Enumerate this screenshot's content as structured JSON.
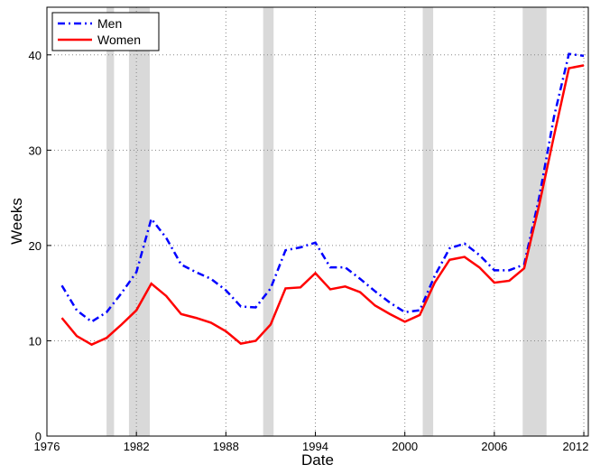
{
  "chart_data": {
    "type": "line",
    "x_label": "Date",
    "y_label": "Weeks",
    "x": [
      1977,
      1978,
      1979,
      1980,
      1981,
      1982,
      1983,
      1984,
      1985,
      1986,
      1987,
      1988,
      1989,
      1990,
      1991,
      1992,
      1993,
      1994,
      1995,
      1996,
      1997,
      1998,
      1999,
      2000,
      2001,
      2002,
      2003,
      2004,
      2005,
      2006,
      2007,
      2008,
      2009,
      2010,
      2011,
      2012
    ],
    "series": [
      {
        "name": "Men",
        "color": "#0000ff",
        "dash": "dash-dot",
        "values": [
          15.8,
          13.2,
          12.0,
          13.0,
          15.0,
          17.2,
          22.8,
          20.8,
          18.0,
          17.2,
          16.5,
          15.3,
          13.6,
          13.5,
          15.5,
          19.5,
          19.8,
          20.3,
          17.7,
          17.7,
          16.5,
          15.2,
          14.0,
          13.0,
          13.2,
          16.8,
          19.7,
          20.2,
          19.0,
          17.4,
          17.4,
          18.0,
          25.0,
          33.5,
          40.1,
          39.9
        ]
      },
      {
        "name": "Women",
        "color": "#ff0000",
        "dash": "solid",
        "values": [
          12.4,
          10.5,
          9.6,
          10.3,
          11.7,
          13.2,
          16.0,
          14.7,
          12.8,
          12.4,
          11.9,
          11.0,
          9.7,
          10.0,
          11.7,
          15.5,
          15.6,
          17.1,
          15.4,
          15.7,
          15.1,
          13.7,
          12.8,
          12.0,
          12.7,
          16.1,
          18.5,
          18.8,
          17.7,
          16.1,
          16.3,
          17.6,
          24.2,
          31.5,
          38.6,
          38.9
        ]
      }
    ],
    "recessions": [
      [
        1980.0,
        1980.5
      ],
      [
        1981.5,
        1982.9
      ],
      [
        1990.5,
        1991.2
      ],
      [
        2001.2,
        2001.9
      ],
      [
        2007.9,
        2009.5
      ]
    ],
    "recession_color": "#d9d9d9",
    "xlim": [
      1976,
      2012.3
    ],
    "xticks": [
      1976,
      1982,
      1988,
      1994,
      2000,
      2006,
      2012
    ],
    "ylim": [
      0,
      45
    ],
    "yticks": [
      0,
      10,
      20,
      30,
      40
    ],
    "grid": true,
    "legend": "upper-left"
  }
}
